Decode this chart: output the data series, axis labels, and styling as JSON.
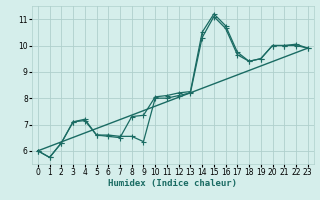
{
  "xlabel": "Humidex (Indice chaleur)",
  "xlim": [
    -0.5,
    23.5
  ],
  "ylim": [
    5.5,
    11.5
  ],
  "xticks": [
    0,
    1,
    2,
    3,
    4,
    5,
    6,
    7,
    8,
    9,
    10,
    11,
    12,
    13,
    14,
    15,
    16,
    17,
    18,
    19,
    20,
    21,
    22,
    23
  ],
  "yticks": [
    6,
    7,
    8,
    9,
    10,
    11
  ],
  "bg_color": "#d5eeeb",
  "grid_color": "#afd0cc",
  "line_color": "#1a6b63",
  "line1_x": [
    0,
    1,
    2,
    3,
    4,
    5,
    6,
    7,
    8,
    9,
    10,
    11,
    12,
    13,
    14,
    15,
    16,
    17,
    18,
    19,
    20,
    21,
    22,
    23
  ],
  "line1_y": [
    6.0,
    5.75,
    6.3,
    7.1,
    7.15,
    6.6,
    6.6,
    6.55,
    6.55,
    6.35,
    8.0,
    8.0,
    8.1,
    8.2,
    10.3,
    11.1,
    10.65,
    9.65,
    9.4,
    9.5,
    10.0,
    10.0,
    10.0,
    9.9
  ],
  "line2_x": [
    0,
    1,
    2,
    3,
    4,
    5,
    6,
    7,
    8,
    9,
    10,
    11,
    12,
    13,
    14,
    15,
    16,
    17,
    18,
    19,
    20,
    21,
    22,
    23
  ],
  "line2_y": [
    6.0,
    5.75,
    6.3,
    7.1,
    7.2,
    6.6,
    6.55,
    6.5,
    7.3,
    7.35,
    8.05,
    8.1,
    8.2,
    8.25,
    10.5,
    11.2,
    10.75,
    9.75,
    9.4,
    9.5,
    10.0,
    10.0,
    10.05,
    9.9
  ],
  "line3_x": [
    0,
    23
  ],
  "line3_y": [
    6.0,
    9.9
  ]
}
